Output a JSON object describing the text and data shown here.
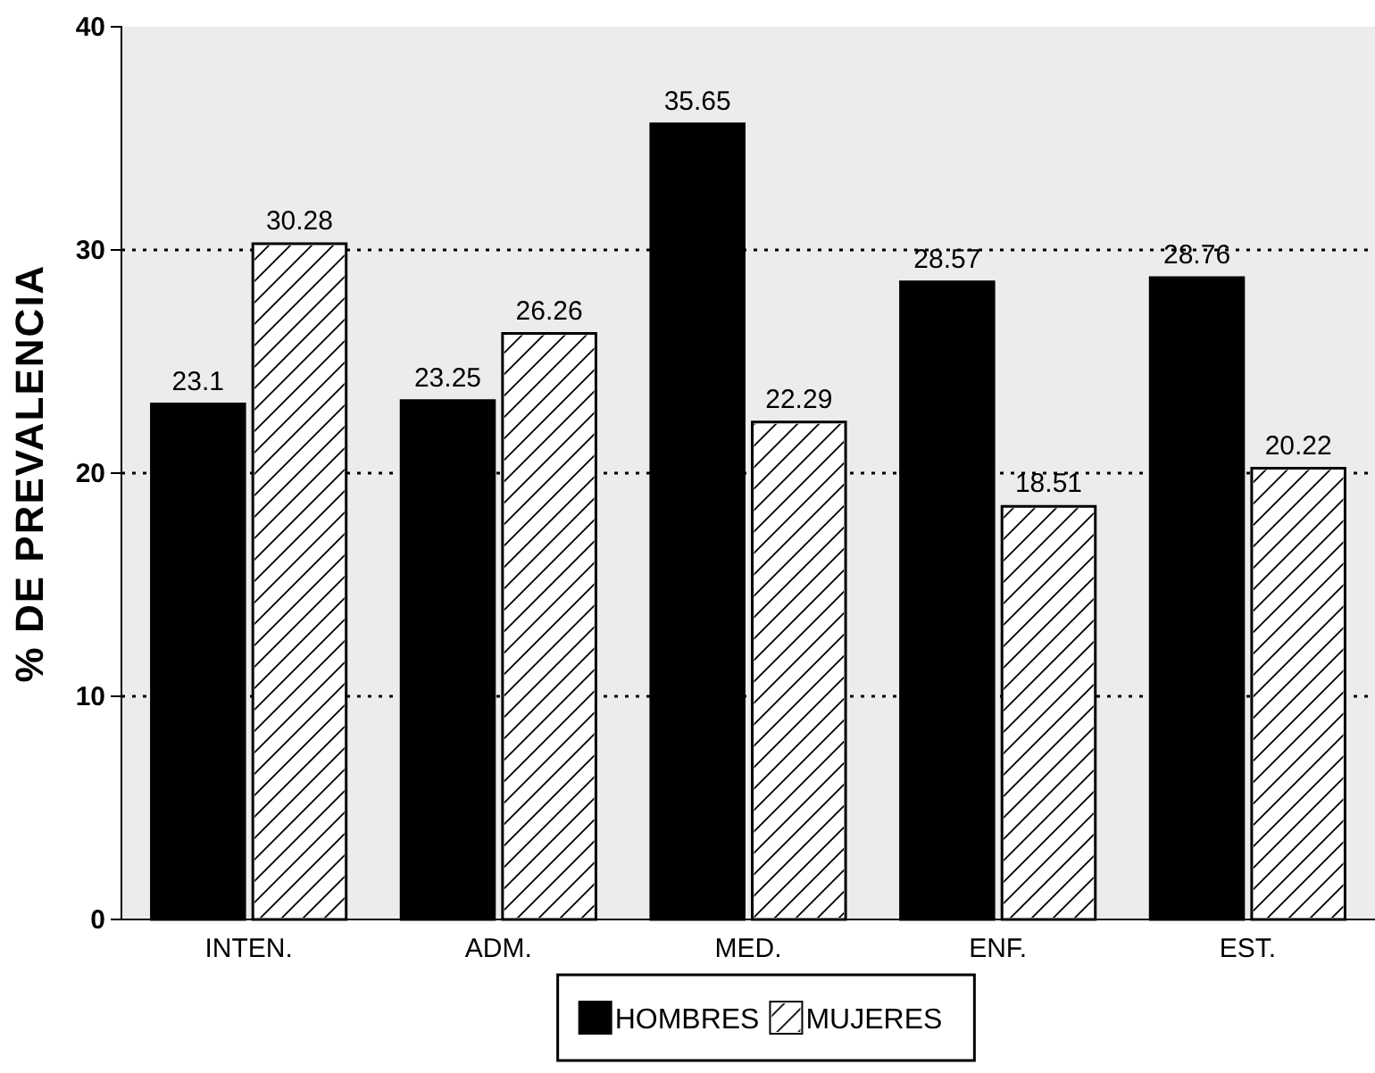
{
  "chart_data": {
    "type": "bar",
    "ylabel": "% DE PREVALENCIA",
    "categories": [
      "INTEN.",
      "ADM.",
      "MED.",
      "ENF.",
      "EST."
    ],
    "series": [
      {
        "name": "HOMBRES",
        "color": "#000000",
        "values": [
          23.1,
          23.25,
          35.65,
          28.57,
          28.76
        ]
      },
      {
        "name": "MUJERES",
        "color": "#ffffff",
        "values": [
          30.28,
          26.26,
          22.29,
          18.51,
          20.22
        ]
      }
    ],
    "ylim": [
      0,
      40
    ],
    "yticks": [
      0,
      10,
      20,
      30,
      40
    ],
    "grid": "y",
    "legend": "bottom",
    "data_labels": true
  }
}
